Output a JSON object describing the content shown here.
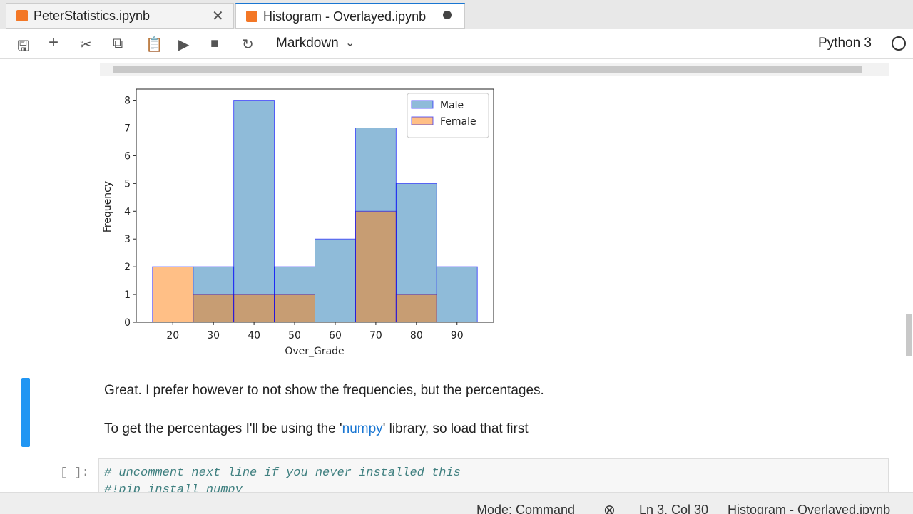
{
  "tabs": [
    "PeterStatistics.ipynb",
    "Histogram - Overlayed.ipynb"
  ],
  "toolbar": {
    "cell_type": "Markdown",
    "kernel": "Python 3"
  },
  "chart_data": {
    "type": "histogram",
    "x_label": "Over_Grade",
    "y_label": "Frequency",
    "bins": [
      15,
      25,
      35,
      45,
      55,
      65,
      75,
      85,
      95
    ],
    "series": [
      {
        "name": "Male",
        "color": "#1f77b4",
        "values": [
          0,
          2,
          8,
          2,
          3,
          7,
          5,
          2
        ]
      },
      {
        "name": "Female",
        "color": "#ff7f0e",
        "values": [
          2,
          1,
          1,
          1,
          0,
          4,
          1,
          0
        ]
      }
    ],
    "xlim": [
      11,
      99
    ],
    "ylim": [
      0,
      8.4
    ],
    "xticks": [
      20,
      30,
      40,
      50,
      60,
      70,
      80,
      90
    ],
    "yticks": [
      0,
      1,
      2,
      3,
      4,
      5,
      6,
      7,
      8
    ],
    "legend": "upper right"
  },
  "markdown": [
    "Great. I prefer however to not show the frequencies, but the percentages.",
    [
      "To get the percentages I'll be using the '",
      "numpy",
      "' library, so load that first"
    ]
  ],
  "code_cell": {
    "prompt": "[ ]:",
    "lines": [
      "# uncomment next line if you never installed this",
      "#!pip install numpy"
    ]
  },
  "status": {
    "mode": "Mode: Command",
    "position": "Ln 3, Col 30",
    "file": "Histogram - Overlayed.ipynb"
  }
}
